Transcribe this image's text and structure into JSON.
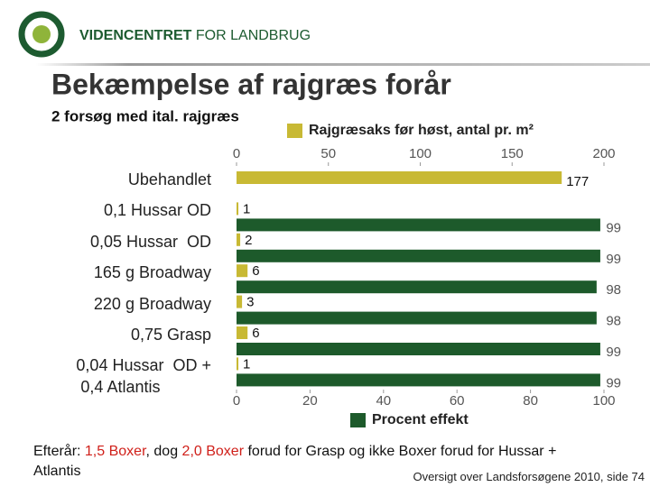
{
  "header": {
    "brand": "VIDENCENTRET",
    "brand_suffix": "FOR LANDBRUG"
  },
  "chart_data": {
    "type": "hbar",
    "title": "Bekæmpelse af rajgræs forår",
    "subtitle": "2 forsøg med ital. rajgræs",
    "categories": [
      "Ubehandlet",
      "0,1 Hussar OD",
      "0,05 Hussar  OD",
      "165 g Broadway",
      "220 g Broadway",
      "0,75 Grasp",
      "0,04 Hussar  OD +\n 0,4 Atlantis"
    ],
    "series": [
      {
        "name": "Rajgræsaks før høst, antal pr. m²",
        "color": "#c8b934",
        "axis": "x2",
        "values": [
          177,
          1,
          2,
          6,
          3,
          6,
          1
        ]
      },
      {
        "name": "Procent effekt",
        "color": "#1d5a2b",
        "values": [
          null,
          99,
          99,
          98,
          98,
          99,
          99
        ]
      }
    ],
    "xlim": [
      0,
      100
    ],
    "xticks": [
      0,
      20,
      40,
      60,
      80,
      100
    ],
    "x2lim": [
      0,
      200
    ],
    "x2ticks": [
      0,
      50,
      100,
      150,
      200
    ],
    "grid": false
  },
  "footer": {
    "note": [
      {
        "text": "Efterår: ",
        "red": false
      },
      {
        "text": "1,5 Boxer",
        "red": true
      },
      {
        "text": ", dog ",
        "red": false
      },
      {
        "text": "2,0 Boxer",
        "red": true
      },
      {
        "text": " forud for Grasp og ikke Boxer forud for Hussar + Atlantis",
        "red": false
      }
    ],
    "source": "Oversigt over Landsforsøgene 2010, side 74"
  }
}
